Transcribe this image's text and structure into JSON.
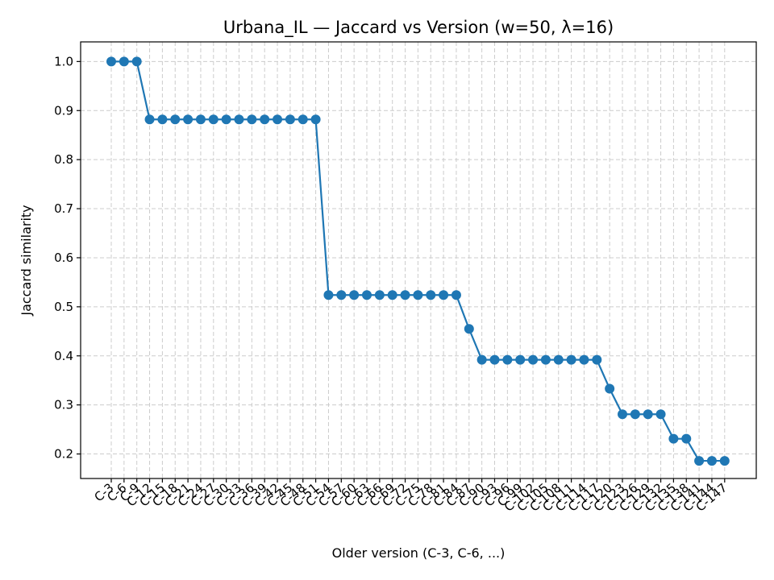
{
  "chart_data": {
    "type": "line",
    "title": "Urbana_IL — Jaccard vs Version (w=50, λ=16)",
    "xlabel": "Older version (C-3, C-6, ...)",
    "ylabel": "Jaccard similarity",
    "ylim": [
      0.15,
      1.04
    ],
    "yticks": [
      0.2,
      0.3,
      0.4,
      0.5,
      0.6,
      0.7,
      0.8,
      0.9,
      1.0
    ],
    "grid": true,
    "color": "#1f77b4",
    "categories": [
      "C-3",
      "C-6",
      "C-9",
      "C-12",
      "C-15",
      "C-18",
      "C-21",
      "C-24",
      "C-27",
      "C-30",
      "C-33",
      "C-36",
      "C-39",
      "C-42",
      "C-45",
      "C-48",
      "C-51",
      "C-54",
      "C-57",
      "C-60",
      "C-63",
      "C-66",
      "C-69",
      "C-72",
      "C-75",
      "C-78",
      "C-81",
      "C-84",
      "C-87",
      "C-90",
      "C-93",
      "C-96",
      "C-99",
      "C-102",
      "C-105",
      "C-108",
      "C-111",
      "C-114",
      "C-117",
      "C-120",
      "C-123",
      "C-126",
      "C-129",
      "C-132",
      "C-135",
      "C-138",
      "C-141",
      "C-144",
      "C-147"
    ],
    "values": [
      1.0,
      1.0,
      1.0,
      0.882,
      0.882,
      0.882,
      0.882,
      0.882,
      0.882,
      0.882,
      0.882,
      0.882,
      0.882,
      0.882,
      0.882,
      0.882,
      0.882,
      0.524,
      0.524,
      0.524,
      0.524,
      0.524,
      0.524,
      0.524,
      0.524,
      0.524,
      0.524,
      0.524,
      0.455,
      0.392,
      0.392,
      0.392,
      0.392,
      0.392,
      0.392,
      0.392,
      0.392,
      0.392,
      0.392,
      0.333,
      0.281,
      0.281,
      0.281,
      0.281,
      0.231,
      0.231,
      0.186,
      0.186,
      0.186
    ]
  }
}
